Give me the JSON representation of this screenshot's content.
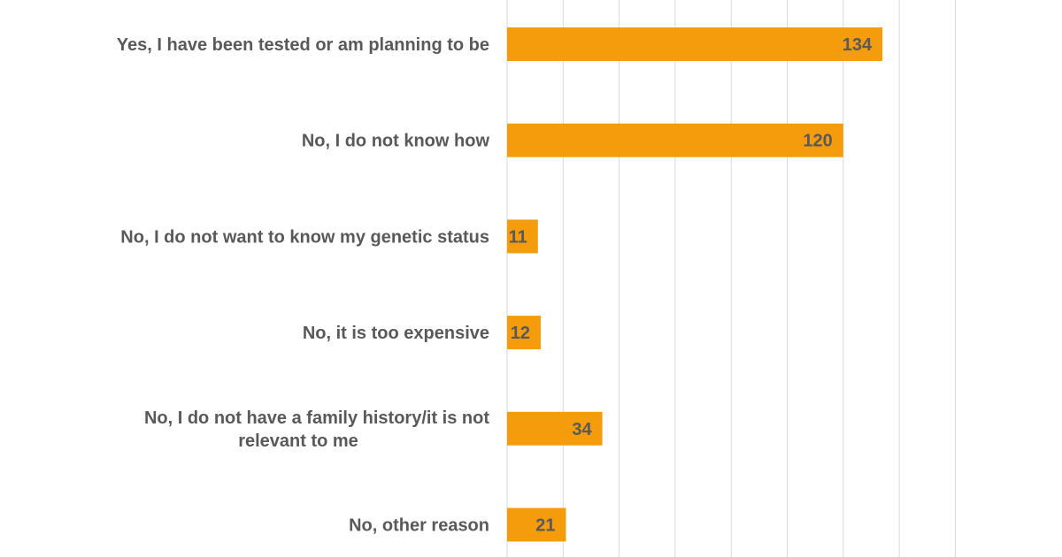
{
  "chart_data": {
    "type": "bar",
    "orientation": "horizontal",
    "categories": [
      [
        "Yes, I have been tested or am planning to be"
      ],
      [
        "No, I do not know how"
      ],
      [
        "No, I do not want to know my genetic status"
      ],
      [
        "No, it is too expensive"
      ],
      [
        "No, I do not have a family history/it is not",
        "relevant to me"
      ],
      [
        "No, other reason"
      ]
    ],
    "values": [
      134,
      120,
      11,
      12,
      34,
      21
    ],
    "value_labels": [
      "134",
      "120",
      "11",
      "12",
      "34",
      "21"
    ],
    "xlim": [
      0,
      160
    ],
    "x_gridline_step": 20,
    "grid": "vertical",
    "bar_color": "#F59C0D",
    "gridline_color": "#D9D9D9",
    "text_color": "#595959"
  }
}
